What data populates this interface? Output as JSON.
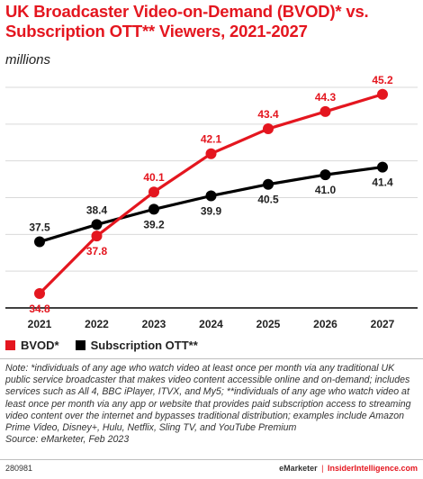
{
  "header": {
    "title": "UK Broadcaster Video-on-Demand (BVOD)* vs. Subscription OTT** Viewers, 2021-2027",
    "subtitle": "millions"
  },
  "colors": {
    "bvod": "#e4161f",
    "ott": "#000000",
    "grid": "#d9d9d9"
  },
  "chart_data": {
    "type": "line",
    "x": [
      "2021",
      "2022",
      "2023",
      "2024",
      "2025",
      "2026",
      "2027"
    ],
    "series": [
      {
        "name": "BVOD*",
        "values": [
          34.8,
          37.8,
          40.1,
          42.1,
          43.4,
          44.3,
          45.2
        ]
      },
      {
        "name": "Subscription OTT**",
        "values": [
          37.5,
          38.4,
          39.2,
          39.9,
          40.5,
          41.0,
          41.4
        ]
      }
    ],
    "ylim": [
      34.0,
      45.8
    ],
    "grid": "horizontal",
    "legend": "bottom-left"
  },
  "legend": {
    "bvod_label": "BVOD*",
    "ott_label": "Subscription OTT**"
  },
  "note": {
    "text": "Note: *individuals of any age who watch video at least once per month via any traditional UK public service broadcaster that makes video content accessible online and on-demand; includes services such as All 4, BBC iPlayer, ITVX, and My5; **individuals of any age who watch video at least once per month via any app or website that provides paid subscription access to streaming video content over the internet and bypasses traditional distribution; examples include Amazon Prime Video, Disney+, Hulu, Netflix, Sling TV, and YouTube Premium",
    "source": "Source: eMarketer, Feb 2023"
  },
  "footer": {
    "id": "280981",
    "brand": "eMarketer",
    "separator": "|",
    "site": "InsiderIntelligence.com"
  }
}
